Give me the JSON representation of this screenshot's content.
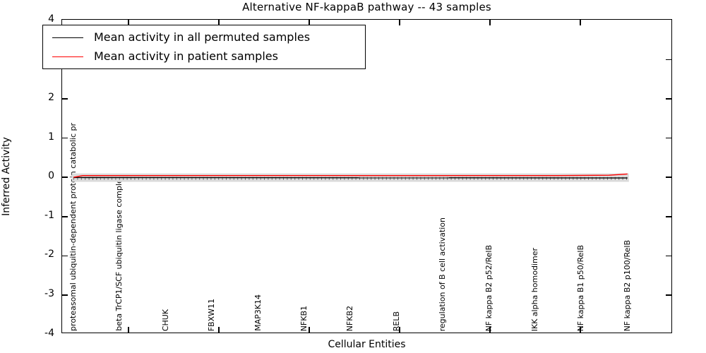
{
  "title": "Alternative NF-kappaB pathway -- 43 samples",
  "axes": {
    "xlabel": "Cellular Entities",
    "ylabel": "Inferred Activity",
    "yticks": [
      "4",
      "3",
      "2",
      "1",
      "0",
      "-1",
      "-2",
      "-3",
      "-4"
    ]
  },
  "legend": {
    "items": [
      {
        "label": "Mean activity in all permuted samples",
        "color": "#000000"
      },
      {
        "label": "Mean activity in patient samples",
        "color": "#ff0000"
      }
    ],
    "position": "upper left"
  },
  "chart_data": {
    "type": "line",
    "title": "Alternative NF-kappaB pathway -- 43 samples",
    "xlabel": "Cellular Entities",
    "ylabel": "Inferred Activity",
    "ylim": [
      -4,
      4
    ],
    "grid": false,
    "legend_position": "upper left",
    "categories": [
      "proteasomal ubiquitin-dependent protein catabolic pr",
      "beta TrCP1/SCF ubiquitin ligase complex",
      "CHUK",
      "FBXW11",
      "MAP3K14",
      "NFKB1",
      "NFKB2",
      "RELB",
      "regulation of B cell activation",
      "NF kappa B2 p52/RelB",
      "IKK alpha homodimer",
      "NF kappa B1 p50/RelB",
      "NF kappa B2 p100/RelB"
    ],
    "series": [
      {
        "name": "Mean activity in all permuted samples",
        "color": "#000000",
        "x": [
          0,
          12
        ],
        "values": [
          -0.005,
          -0.015
        ]
      },
      {
        "name": "Mean activity in patient samples",
        "color": "#ff0000",
        "x": [
          0,
          0.2,
          10.5,
          11.6,
          12
        ],
        "values": [
          0.0,
          0.045,
          0.045,
          0.055,
          0.085
        ]
      }
    ],
    "band": {
      "upper": 0.1,
      "lower": -0.115,
      "color": "#dcdcdc"
    }
  }
}
